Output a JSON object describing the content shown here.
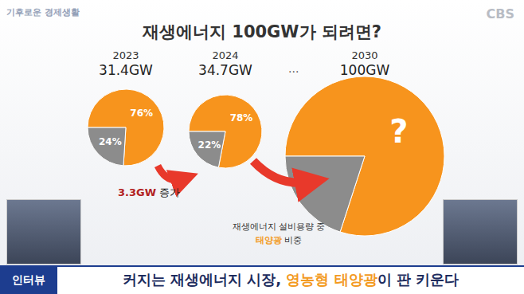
{
  "title": "재생에너지 100GW가 되려면?",
  "logo": "기후로운 경제생활",
  "broadcaster": "CBS",
  "ellipsis": "...",
  "chart_data": [
    {
      "type": "pie",
      "title": "2023",
      "subtitle": "31.4GW",
      "values": [
        76,
        24
      ],
      "value_labels": [
        "76%",
        "24%"
      ],
      "colors": [
        "#f7941d",
        "#8c8c8c"
      ],
      "data_labels": true
    },
    {
      "type": "pie",
      "title": "2024",
      "subtitle": "34.7GW",
      "values": [
        78,
        22
      ],
      "value_labels": [
        "78%",
        "22%"
      ],
      "colors": [
        "#f7941d",
        "#8c8c8c"
      ],
      "data_labels": true
    },
    {
      "type": "pie",
      "title": "2030",
      "subtitle": "100GW",
      "values": [
        80,
        20
      ],
      "value_labels": [
        "?",
        null
      ],
      "colors": [
        "#f7941d",
        "#8c8c8c"
      ],
      "data_labels": true
    }
  ],
  "annotations": {
    "increase": {
      "value": "3.3GW",
      "text": "증가"
    },
    "note": {
      "line1": "재생에너지 설비용량 중",
      "highlight": "태양광",
      "rest": "비중"
    }
  },
  "banner": {
    "tag": "인터뷰",
    "parts": [
      {
        "text": "커지는 재생에너지 시장, "
      },
      {
        "text": "영농형 태양광",
        "highlight": true
      },
      {
        "text": "이 판 키운다"
      }
    ]
  }
}
